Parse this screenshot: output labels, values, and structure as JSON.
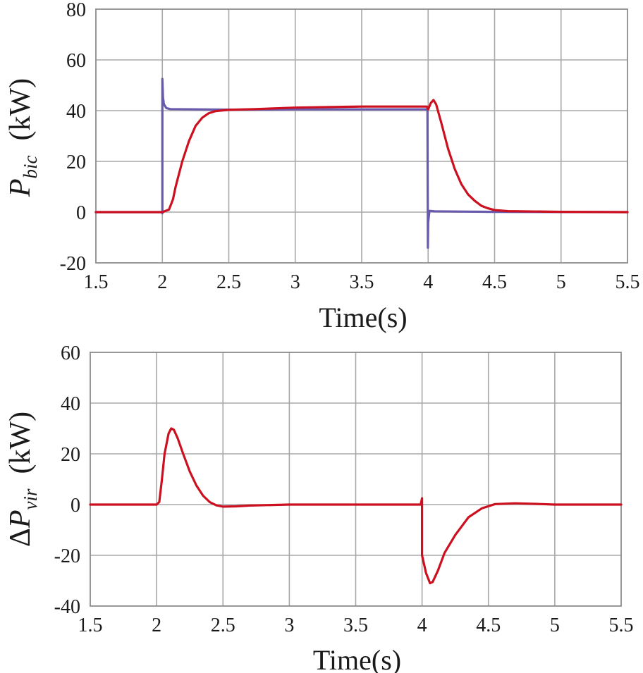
{
  "chart_data": [
    {
      "type": "line",
      "xlabel": "Time(s)",
      "ylabel": {
        "prefix": "",
        "symbol": "P",
        "subscript": "bic",
        "unit": "(kW)"
      },
      "xlim": [
        1.5,
        5.5
      ],
      "ylim": [
        -20,
        80
      ],
      "xticks": [
        "1.5",
        "2",
        "2.5",
        "3",
        "3.5",
        "4",
        "4.5",
        "5",
        "5.5"
      ],
      "yticks": [
        "80",
        "60",
        "40",
        "20",
        "0",
        "-20"
      ],
      "grid": true,
      "series": [
        {
          "color": "#6a5aad",
          "points": [
            [
              1.5,
              0
            ],
            [
              1.998,
              0
            ],
            [
              2.0,
              -0.5
            ],
            [
              2.0,
              52.5
            ],
            [
              2.005,
              45
            ],
            [
              2.012,
              42.5
            ],
            [
              2.03,
              41
            ],
            [
              2.06,
              40.6
            ],
            [
              2.5,
              40.4
            ],
            [
              3.0,
              40.5
            ],
            [
              3.5,
              40.5
            ],
            [
              3.995,
              40.5
            ],
            [
              3.998,
              -14
            ],
            [
              4.0,
              -4
            ],
            [
              4.01,
              0.5
            ],
            [
              4.05,
              0.3
            ],
            [
              4.5,
              0.1
            ],
            [
              5.5,
              0
            ]
          ]
        },
        {
          "color": "#cc1020",
          "points": [
            [
              1.5,
              0
            ],
            [
              2.0,
              0
            ],
            [
              2.05,
              1
            ],
            [
              2.08,
              5
            ],
            [
              2.1,
              10
            ],
            [
              2.15,
              20
            ],
            [
              2.2,
              28
            ],
            [
              2.25,
              34
            ],
            [
              2.3,
              37.2
            ],
            [
              2.35,
              39
            ],
            [
              2.4,
              39.8
            ],
            [
              2.5,
              40.3
            ],
            [
              2.7,
              40.6
            ],
            [
              3.0,
              41.2
            ],
            [
              3.5,
              41.6
            ],
            [
              3.99,
              41.6
            ],
            [
              4.0,
              40.5
            ],
            [
              4.02,
              43
            ],
            [
              4.04,
              44.2
            ],
            [
              4.06,
              42.5
            ],
            [
              4.1,
              35
            ],
            [
              4.15,
              25
            ],
            [
              4.2,
              17
            ],
            [
              4.25,
              11
            ],
            [
              4.3,
              7
            ],
            [
              4.35,
              4.5
            ],
            [
              4.4,
              2.5
            ],
            [
              4.45,
              1.5
            ],
            [
              4.5,
              0.8
            ],
            [
              4.6,
              0.4
            ],
            [
              5.0,
              0.1
            ],
            [
              5.5,
              0
            ]
          ]
        }
      ]
    },
    {
      "type": "line",
      "xlabel": "Time(s)",
      "ylabel": {
        "prefix": "Δ",
        "symbol": "P",
        "subscript": "vir",
        "unit": "(kW)"
      },
      "xlim": [
        1.5,
        5.5
      ],
      "ylim": [
        -40,
        60
      ],
      "xticks": [
        "1.5",
        "2",
        "2.5",
        "3",
        "3.5",
        "4",
        "4.5",
        "5",
        "5.5"
      ],
      "yticks": [
        "60",
        "40",
        "20",
        "0",
        "-20",
        "-40"
      ],
      "grid": true,
      "series": [
        {
          "color": "#cc1020",
          "points": [
            [
              1.5,
              0
            ],
            [
              2.0,
              0
            ],
            [
              2.02,
              1
            ],
            [
              2.04,
              10
            ],
            [
              2.06,
              20
            ],
            [
              2.09,
              28
            ],
            [
              2.11,
              30
            ],
            [
              2.13,
              29.5
            ],
            [
              2.16,
              26
            ],
            [
              2.2,
              20
            ],
            [
              2.25,
              13
            ],
            [
              2.3,
              7.5
            ],
            [
              2.35,
              3.5
            ],
            [
              2.4,
              1
            ],
            [
              2.45,
              -0.3
            ],
            [
              2.5,
              -0.8
            ],
            [
              2.6,
              -0.7
            ],
            [
              2.7,
              -0.4
            ],
            [
              3.0,
              0
            ],
            [
              3.99,
              0
            ],
            [
              4.0,
              2.5
            ],
            [
              4.0,
              -20
            ],
            [
              4.03,
              -27
            ],
            [
              4.06,
              -31
            ],
            [
              4.08,
              -30.5
            ],
            [
              4.12,
              -26
            ],
            [
              4.17,
              -19
            ],
            [
              4.25,
              -12
            ],
            [
              4.35,
              -5
            ],
            [
              4.45,
              -1.5
            ],
            [
              4.55,
              0.2
            ],
            [
              4.7,
              0.5
            ],
            [
              4.9,
              0.2
            ],
            [
              5.0,
              0
            ],
            [
              5.5,
              0
            ]
          ]
        }
      ]
    }
  ]
}
